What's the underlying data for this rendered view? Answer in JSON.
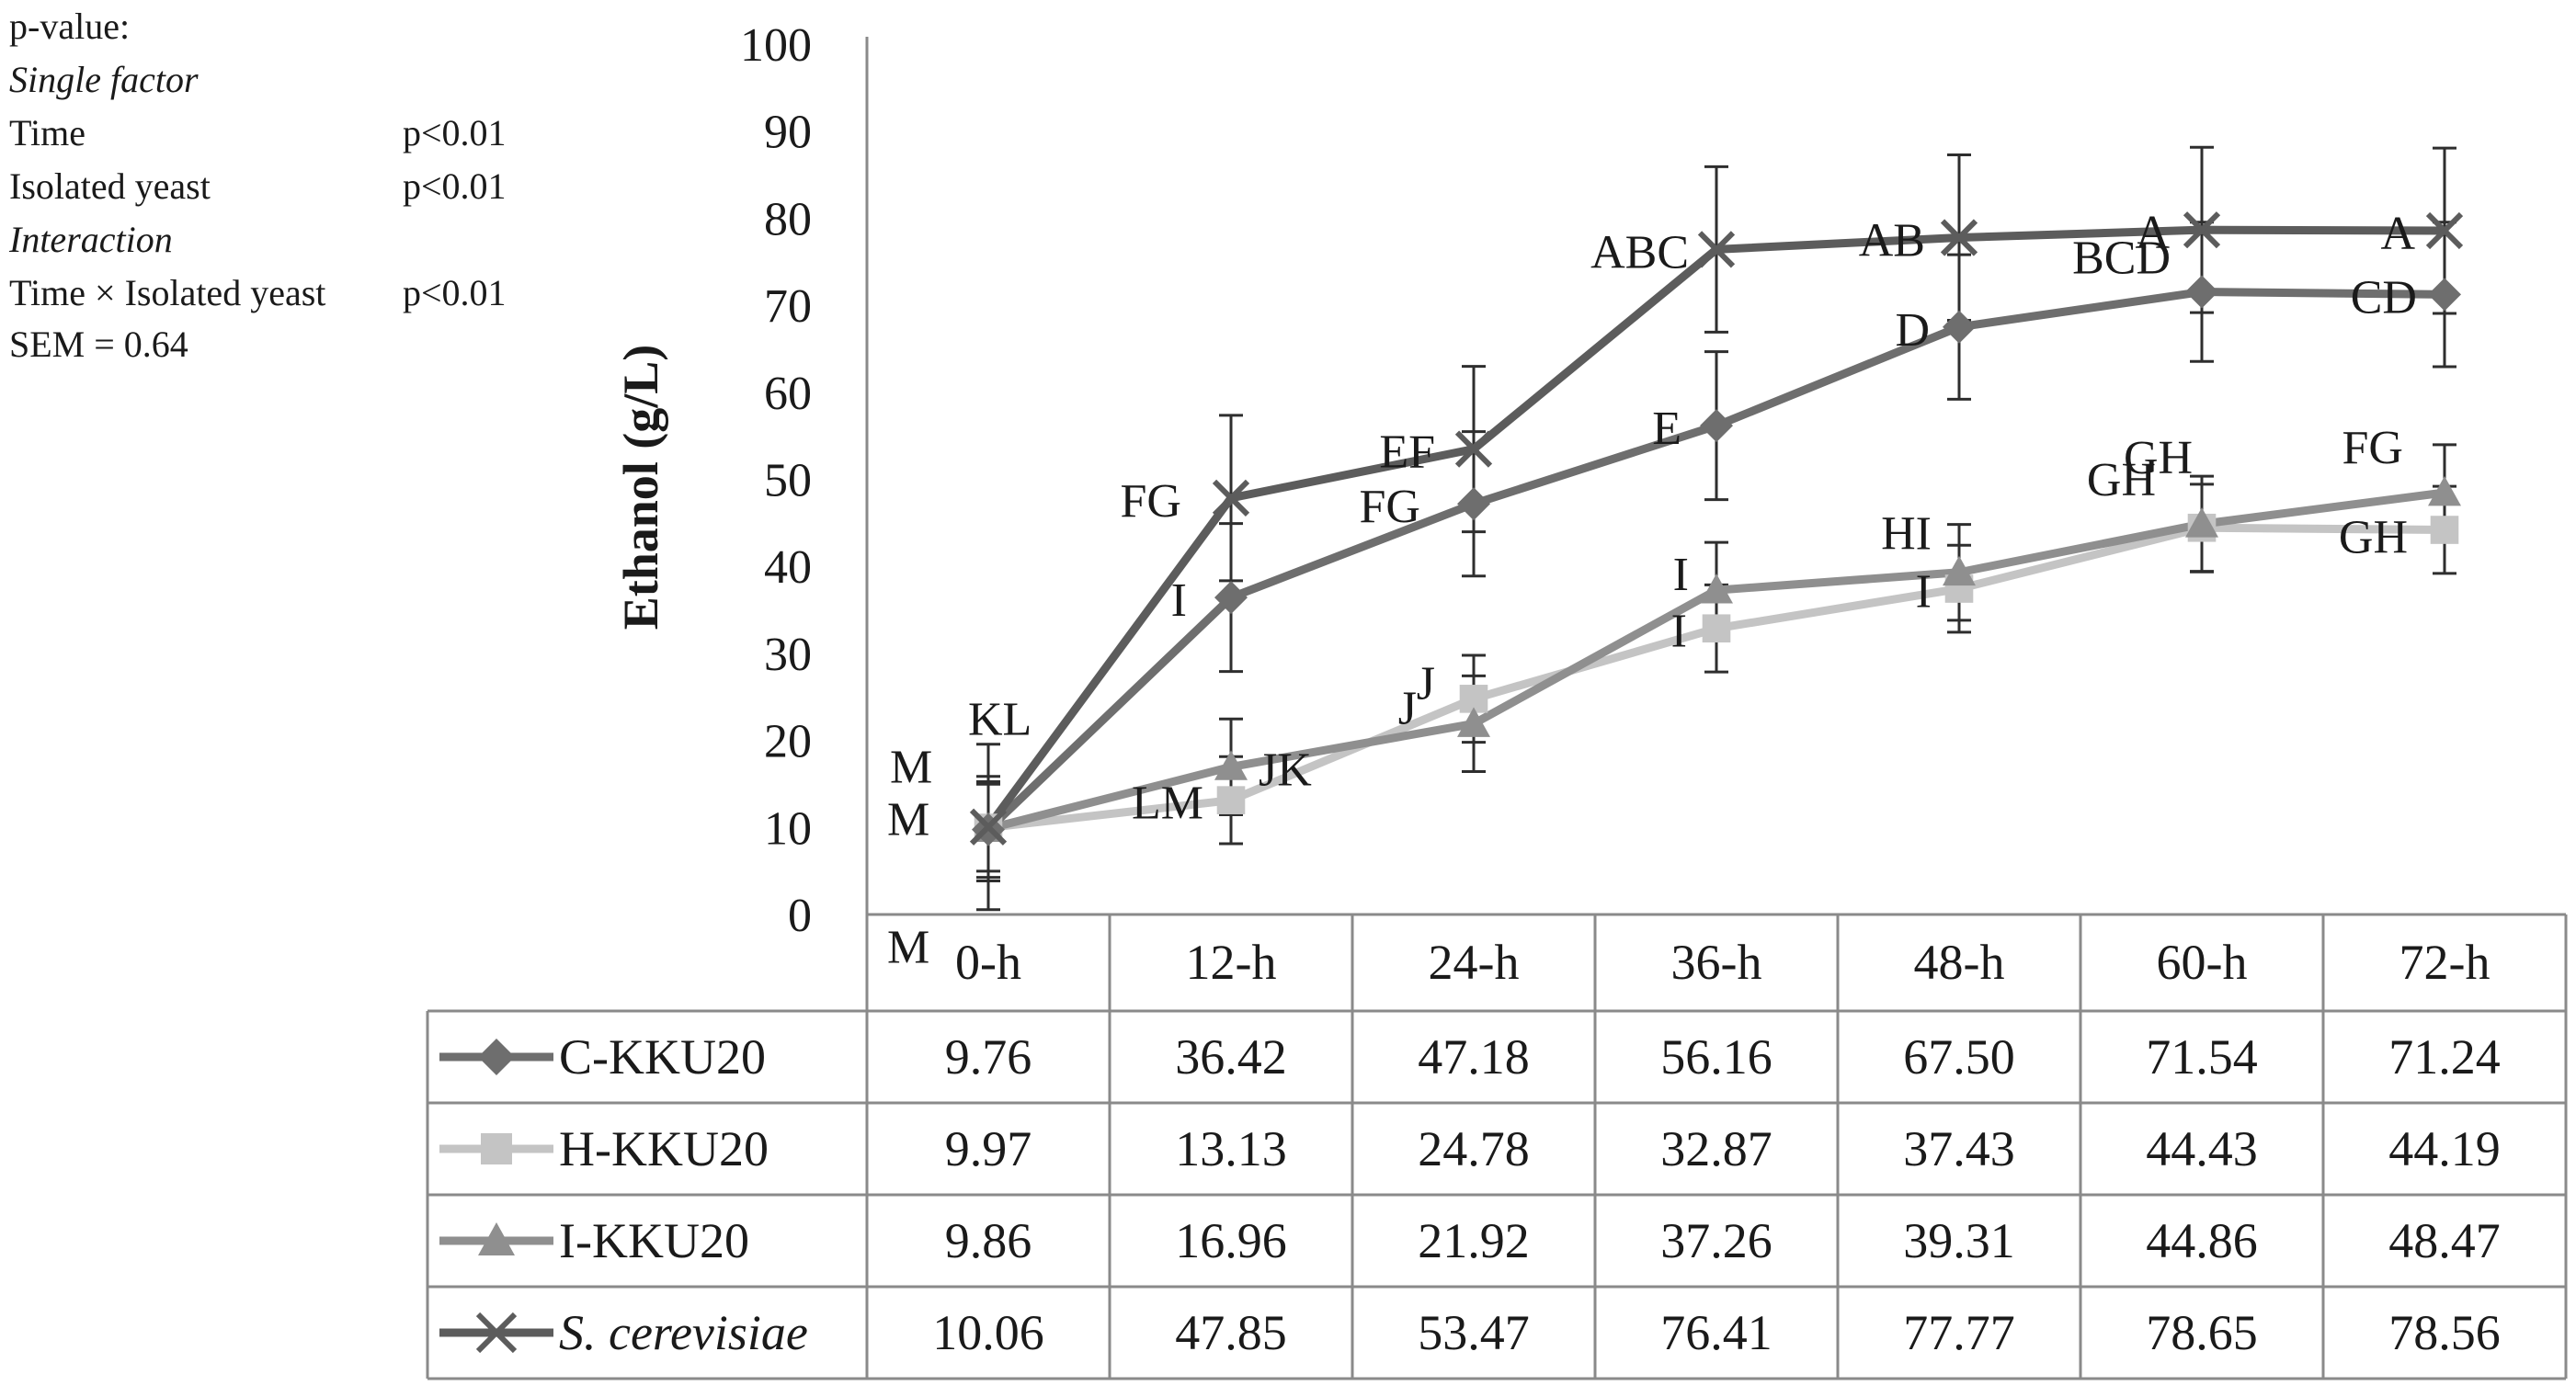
{
  "stats": {
    "heading": "p-value:",
    "single_factor": "Single factor",
    "time_label": "Time",
    "time_p": "p<0.01",
    "yeast_label": "Isolated yeast",
    "yeast_p": "p<0.01",
    "interaction": "Interaction",
    "interaction_label": "Time × Isolated yeast",
    "interaction_p": "p<0.01",
    "sem": "SEM = 0.64"
  },
  "chart_data": {
    "type": "line",
    "title": "",
    "xlabel": "",
    "ylabel": "Ethanol (g/L)",
    "ylim": [
      0,
      100
    ],
    "yticks": [
      0,
      10,
      20,
      30,
      40,
      50,
      60,
      70,
      80,
      90,
      100
    ],
    "categories": [
      "0-h",
      "12-h",
      "24-h",
      "36-h",
      "48-h",
      "60-h",
      "72-h"
    ],
    "series": [
      {
        "name": "C-KKU20",
        "italic": false,
        "marker": "diamond",
        "color": "#6e6e6e",
        "values": [
          9.76,
          36.42,
          47.18,
          56.16,
          67.5,
          71.54,
          71.24
        ],
        "value_labels": [
          "9.76",
          "36.42",
          "47.18",
          "56.16",
          "67.50",
          "71.54",
          "71.24"
        ],
        "errors": [
          5.5,
          8.5,
          8.3,
          8.5,
          8.3,
          8.0,
          8.3
        ],
        "letters": [
          "M",
          "I",
          "FG",
          "E",
          "D",
          "BCD",
          "CD"
        ]
      },
      {
        "name": "H-KKU20",
        "italic": false,
        "marker": "square",
        "color": "#c4c4c4",
        "values": [
          9.97,
          13.13,
          24.78,
          32.87,
          37.43,
          44.43,
          44.19
        ],
        "value_labels": [
          "9.97",
          "13.13",
          "24.78",
          "32.87",
          "37.43",
          "44.43",
          "44.19"
        ],
        "errors": [
          5.0,
          5.0,
          5.0,
          5.0,
          5.0,
          5.0,
          5.0
        ],
        "letters": [
          "M",
          "LM",
          "J",
          "I",
          "I",
          "GH",
          "GH"
        ]
      },
      {
        "name": "I-KKU20",
        "italic": false,
        "marker": "triangle",
        "color": "#8f8f8f",
        "values": [
          9.86,
          16.96,
          21.92,
          37.26,
          39.31,
          44.86,
          48.47
        ],
        "value_labels": [
          "9.86",
          "16.96",
          "21.92",
          "37.26",
          "39.31",
          "44.86",
          "48.47"
        ],
        "errors": [
          6.0,
          5.5,
          5.5,
          5.5,
          5.5,
          5.5,
          5.5
        ],
        "letters": [
          "M",
          "JK",
          "J",
          "I",
          "HI",
          "GH",
          "FG"
        ]
      },
      {
        "name": "S. cerevisiae",
        "italic": true,
        "marker": "x",
        "color": "#5c5c5c",
        "values": [
          10.06,
          47.85,
          53.47,
          76.41,
          77.77,
          78.65,
          78.56
        ],
        "value_labels": [
          "10.06",
          "47.85",
          "53.47",
          "76.41",
          "77.77",
          "78.65",
          "78.56"
        ],
        "errors": [
          9.5,
          9.5,
          9.5,
          9.5,
          9.5,
          9.5,
          9.5
        ],
        "letters": [
          "KL",
          "FG",
          "EF",
          "ABC",
          "AB",
          "A",
          "A"
        ]
      }
    ]
  }
}
